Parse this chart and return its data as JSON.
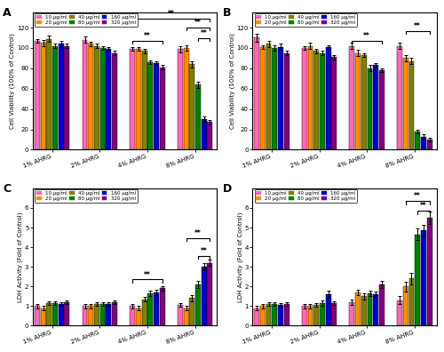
{
  "concentrations": [
    "10 μg/ml",
    "20 μg/ml",
    "40 μg/ml",
    "80 μg/ml",
    "160 μg/ml",
    "320 μg/ml"
  ],
  "colors": [
    "#FF69B4",
    "#FF8C00",
    "#808000",
    "#008000",
    "#0000CD",
    "#800080"
  ],
  "groups": [
    "1% AHRG",
    "2% AHRG",
    "4% AHRG",
    "8% AHRG"
  ],
  "A_values": [
    [
      107,
      105,
      109,
      102,
      104,
      102
    ],
    [
      108,
      104,
      102,
      100,
      99,
      95
    ],
    [
      99,
      99,
      97,
      86,
      85,
      81
    ],
    [
      99,
      100,
      84,
      64,
      30,
      27
    ]
  ],
  "A_errors": [
    [
      2,
      3,
      3,
      2,
      3,
      2
    ],
    [
      3,
      2,
      2,
      2,
      2,
      2
    ],
    [
      2,
      2,
      2,
      2,
      2,
      2
    ],
    [
      3,
      3,
      3,
      3,
      3,
      2
    ]
  ],
  "B_values": [
    [
      110,
      101,
      104,
      100,
      101,
      95
    ],
    [
      100,
      102,
      97,
      95,
      101,
      91
    ],
    [
      102,
      95,
      93,
      80,
      83,
      78
    ],
    [
      102,
      90,
      87,
      18,
      13,
      10
    ]
  ],
  "B_errors": [
    [
      4,
      2,
      3,
      3,
      3,
      2
    ],
    [
      2,
      3,
      2,
      2,
      2,
      2
    ],
    [
      3,
      3,
      2,
      3,
      2,
      2
    ],
    [
      3,
      3,
      3,
      2,
      2,
      2
    ]
  ],
  "C_values": [
    [
      1.0,
      0.9,
      1.15,
      1.15,
      1.1,
      1.2
    ],
    [
      1.0,
      1.0,
      1.1,
      1.1,
      1.1,
      1.2
    ],
    [
      1.0,
      0.9,
      1.35,
      1.65,
      1.7,
      1.9
    ],
    [
      1.05,
      0.9,
      1.4,
      2.1,
      3.0,
      3.2
    ]
  ],
  "C_errors": [
    [
      0.12,
      0.1,
      0.1,
      0.1,
      0.1,
      0.1
    ],
    [
      0.1,
      0.1,
      0.1,
      0.1,
      0.1,
      0.1
    ],
    [
      0.1,
      0.1,
      0.12,
      0.12,
      0.12,
      0.12
    ],
    [
      0.1,
      0.1,
      0.15,
      0.18,
      0.18,
      0.15
    ]
  ],
  "D_values": [
    [
      0.9,
      1.0,
      1.1,
      1.1,
      1.05,
      1.1
    ],
    [
      1.0,
      1.0,
      1.05,
      1.15,
      1.6,
      1.15
    ],
    [
      1.2,
      1.7,
      1.5,
      1.65,
      1.6,
      2.1
    ],
    [
      1.3,
      2.0,
      2.4,
      4.65,
      4.85,
      5.5
    ]
  ],
  "D_errors": [
    [
      0.1,
      0.1,
      0.1,
      0.1,
      0.1,
      0.1
    ],
    [
      0.1,
      0.1,
      0.1,
      0.15,
      0.2,
      0.1
    ],
    [
      0.15,
      0.15,
      0.15,
      0.15,
      0.15,
      0.2
    ],
    [
      0.2,
      0.25,
      0.3,
      0.3,
      0.3,
      0.3
    ]
  ]
}
